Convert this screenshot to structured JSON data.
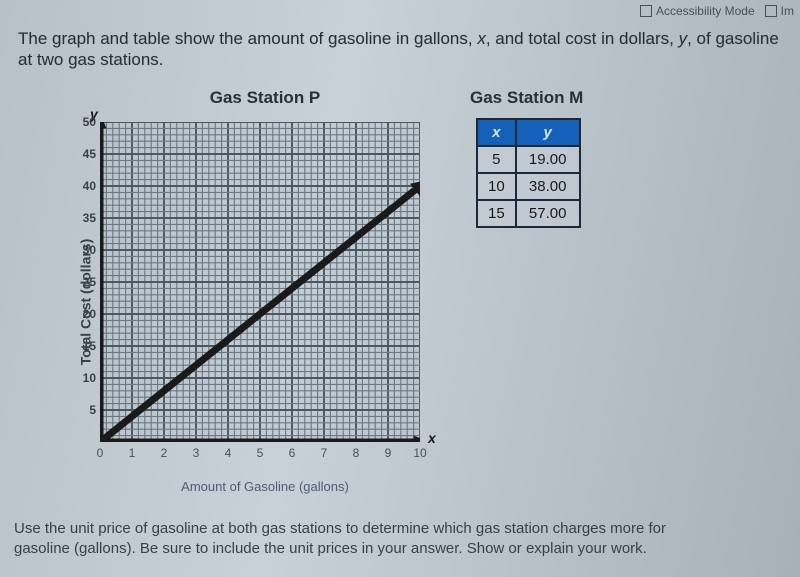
{
  "toolbar": {
    "accessibility": "Accessibility Mode",
    "im": "Im"
  },
  "problem": {
    "intro_a": "The graph and table show the amount of gasoline in gallons, ",
    "var_x": "x",
    "intro_b": ", and total cost in dollars, ",
    "var_y": "y",
    "intro_c": ", of gasoline at two gas stations."
  },
  "chartP": {
    "title": "Gas Station P",
    "y_axis_label": "Total Cost (dollars)",
    "x_axis_label": "Amount of Gasoline (gallons)",
    "y_var": "y",
    "x_var": "x",
    "type": "line",
    "xlim": [
      0,
      10
    ],
    "ylim": [
      0,
      50
    ],
    "xtick_step": 1,
    "ytick_step": 5,
    "minor_divisions": 5,
    "y_ticks": [
      5,
      10,
      15,
      20,
      25,
      30,
      35,
      40,
      45,
      50
    ],
    "x_ticks": [
      0,
      1,
      2,
      3,
      4,
      5,
      6,
      7,
      8,
      9,
      10
    ],
    "line_points": [
      [
        0,
        0
      ],
      [
        10,
        40
      ]
    ],
    "line_color": "#1a1a1a",
    "grid_color": "#4a5862",
    "background": "rgba(180,190,200,0.25)"
  },
  "tableM": {
    "title": "Gas Station M",
    "header_x": "x",
    "header_y": "y",
    "header_bg": "#1560b8",
    "rows": [
      {
        "x": "5",
        "y": "19.00"
      },
      {
        "x": "10",
        "y": "38.00"
      },
      {
        "x": "15",
        "y": "57.00"
      }
    ]
  },
  "question": {
    "line1": "Use the unit price of gasoline at both gas stations to determine which gas station charges more for",
    "line2": "gasoline (gallons). Be sure to include the unit prices in your answer. Show or explain your work."
  }
}
